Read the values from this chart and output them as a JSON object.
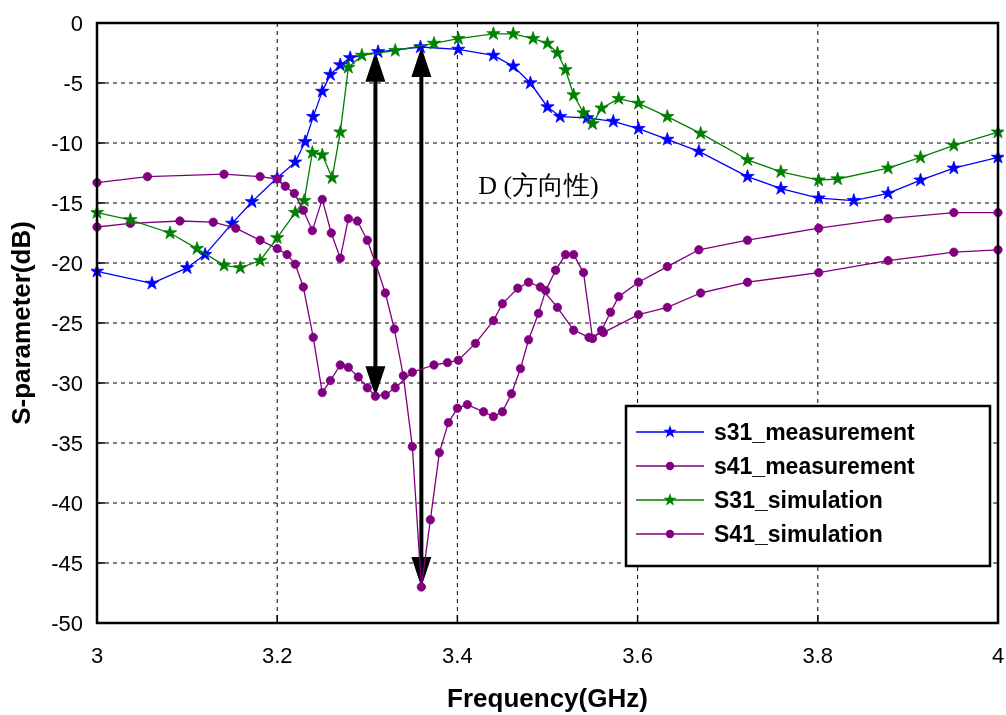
{
  "chart_data": {
    "type": "line",
    "xlabel": "Frequency(GHz)",
    "ylabel": "S-parameter(dB)",
    "xlim": [
      3,
      4
    ],
    "xticks": [
      3,
      3.2,
      3.4,
      3.6,
      3.8,
      4
    ],
    "ylim": [
      -50,
      0
    ],
    "yticks": [
      -50,
      -45,
      -40,
      -35,
      -30,
      -25,
      -20,
      -15,
      -10,
      -5,
      0
    ],
    "grid": true,
    "legend": "bottom right",
    "line_style": "solid",
    "annotations": [
      "D (方向性)"
    ],
    "series": [
      {
        "name": "s31_measurement",
        "color": "#0000ff",
        "marker": "star",
        "x": [
          3.0,
          3.061,
          3.1,
          3.12,
          3.15,
          3.172,
          3.2,
          3.22,
          3.231,
          3.24,
          3.25,
          3.259,
          3.27,
          3.281,
          3.312,
          3.359,
          3.401,
          3.44,
          3.462,
          3.481,
          3.5,
          3.514,
          3.544,
          3.573,
          3.601,
          3.633,
          3.668,
          3.722,
          3.759,
          3.801,
          3.84,
          3.878,
          3.914,
          3.951,
          4.0
        ],
        "values": [
          -20.7,
          -21.7,
          -20.4,
          -19.3,
          -16.7,
          -14.9,
          -12.9,
          -11.6,
          -9.9,
          -7.8,
          -5.7,
          -4.3,
          -3.5,
          -2.9,
          -2.4,
          -2.0,
          -2.2,
          -2.7,
          -3.6,
          -5.0,
          -7.0,
          -7.8,
          -7.9,
          -8.2,
          -8.8,
          -9.7,
          -10.7,
          -12.8,
          -13.8,
          -14.6,
          -14.8,
          -14.2,
          -13.1,
          -12.1,
          -11.2
        ]
      },
      {
        "name": "s41_measurement",
        "color": "#800080",
        "marker": "circle",
        "x": [
          3.0,
          3.037,
          3.092,
          3.129,
          3.154,
          3.181,
          3.2,
          3.211,
          3.22,
          3.229,
          3.24,
          3.25,
          3.259,
          3.27,
          3.279,
          3.29,
          3.3,
          3.309,
          3.32,
          3.331,
          3.35,
          3.374,
          3.389,
          3.401,
          3.42,
          3.44,
          3.45,
          3.467,
          3.479,
          3.492,
          3.511,
          3.529,
          3.546,
          3.562,
          3.601,
          3.633,
          3.67,
          3.722,
          3.801,
          3.878,
          3.951,
          4.0
        ],
        "values": [
          -17.0,
          -16.7,
          -16.5,
          -16.6,
          -17.1,
          -18.1,
          -18.8,
          -19.3,
          -20.1,
          -22.0,
          -26.2,
          -30.8,
          -29.8,
          -28.5,
          -28.7,
          -29.5,
          -30.4,
          -31.1,
          -31.0,
          -30.4,
          -29.1,
          -28.5,
          -28.3,
          -28.1,
          -26.7,
          -24.8,
          -23.4,
          -22.1,
          -21.6,
          -22.0,
          -23.7,
          -25.6,
          -26.2,
          -25.8,
          -24.3,
          -23.7,
          -22.5,
          -21.6,
          -20.8,
          -19.8,
          -19.1,
          -18.9
        ]
      },
      {
        "name": "S31_simulation",
        "color": "#008000",
        "marker": "star",
        "x": [
          3.0,
          3.037,
          3.081,
          3.111,
          3.141,
          3.159,
          3.181,
          3.2,
          3.22,
          3.23,
          3.239,
          3.25,
          3.261,
          3.27,
          3.279,
          3.294,
          3.331,
          3.374,
          3.401,
          3.44,
          3.462,
          3.484,
          3.5,
          3.511,
          3.52,
          3.529,
          3.54,
          3.55,
          3.56,
          3.579,
          3.601,
          3.633,
          3.67,
          3.722,
          3.759,
          3.801,
          3.822,
          3.878,
          3.914,
          3.951,
          4.0
        ],
        "values": [
          -15.8,
          -16.4,
          -17.5,
          -18.8,
          -20.2,
          -20.4,
          -19.8,
          -17.9,
          -15.8,
          -14.8,
          -10.8,
          -11.0,
          -12.9,
          -9.1,
          -3.7,
          -2.7,
          -2.3,
          -1.7,
          -1.3,
          -0.9,
          -0.9,
          -1.3,
          -1.7,
          -2.5,
          -3.9,
          -6.0,
          -7.5,
          -8.4,
          -7.1,
          -6.3,
          -6.7,
          -7.8,
          -9.2,
          -11.4,
          -12.4,
          -13.1,
          -13.0,
          -12.1,
          -11.2,
          -10.2,
          -9.1
        ]
      },
      {
        "name": "S41_simulation",
        "color": "#800080",
        "marker": "circle",
        "x": [
          3.0,
          3.056,
          3.141,
          3.181,
          3.2,
          3.209,
          3.219,
          3.229,
          3.239,
          3.25,
          3.26,
          3.27,
          3.279,
          3.289,
          3.3,
          3.309,
          3.32,
          3.33,
          3.34,
          3.35,
          3.36,
          3.37,
          3.38,
          3.39,
          3.4,
          3.411,
          3.429,
          3.44,
          3.45,
          3.46,
          3.47,
          3.479,
          3.49,
          3.498,
          3.509,
          3.52,
          3.529,
          3.54,
          3.55,
          3.56,
          3.57,
          3.579,
          3.601,
          3.633,
          3.668,
          3.722,
          3.801,
          3.878,
          3.951,
          4.0
        ],
        "values": [
          -13.3,
          -12.8,
          -12.6,
          -12.8,
          -13.0,
          -13.6,
          -14.2,
          -15.6,
          -17.3,
          -14.7,
          -17.5,
          -19.6,
          -16.3,
          -16.5,
          -18.1,
          -20.0,
          -22.5,
          -25.5,
          -29.4,
          -35.3,
          -47.0,
          -41.4,
          -35.8,
          -33.3,
          -32.1,
          -31.8,
          -32.4,
          -32.8,
          -32.4,
          -30.9,
          -28.8,
          -26.4,
          -24.2,
          -22.3,
          -20.6,
          -19.3,
          -19.3,
          -20.8,
          -26.3,
          -25.6,
          -24.1,
          -22.8,
          -21.6,
          -20.3,
          -18.9,
          -18.1,
          -17.1,
          -16.3,
          -15.8,
          -15.8
        ]
      }
    ]
  }
}
